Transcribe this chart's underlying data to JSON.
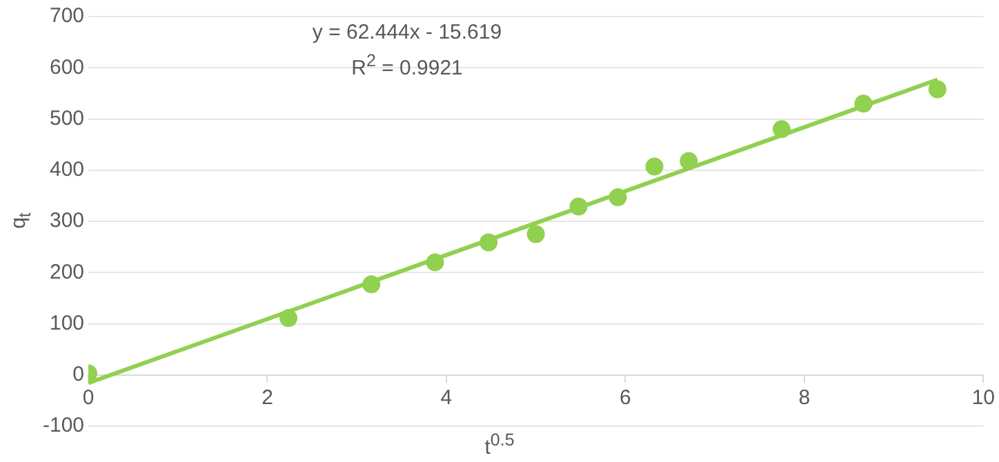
{
  "chart_data": {
    "type": "scatter",
    "xlabel": "t$^{0.5}$",
    "ylabel": "q$_{t}$",
    "annotations": [
      "y = 62.444x - 15.619",
      "R$^{2}$ = 0.9921"
    ],
    "x": [
      0,
      2.236,
      3.162,
      3.873,
      4.472,
      5,
      5.477,
      5.916,
      6.325,
      6.708,
      7.746,
      8.66,
      9.487
    ],
    "series": [
      {
        "color": "#92d050",
        "marker": "circle",
        "values": [
          3,
          111,
          177,
          220,
          259,
          275,
          329,
          347,
          407,
          418,
          480,
          530,
          558
        ]
      },
      {
        "type": "line",
        "color": "#92d050",
        "marker": "none",
        "x": [
          0,
          9.487
        ],
        "values": [
          -15.6,
          576.8
        ]
      }
    ],
    "xlim": [
      0,
      10
    ],
    "xticks": [
      0,
      2,
      4,
      6,
      8,
      10
    ],
    "ylim": [
      -100,
      700
    ],
    "yticks": [
      -100,
      0,
      100,
      200,
      300,
      400,
      500,
      600,
      700
    ],
    "grid": "y",
    "legend": false
  }
}
